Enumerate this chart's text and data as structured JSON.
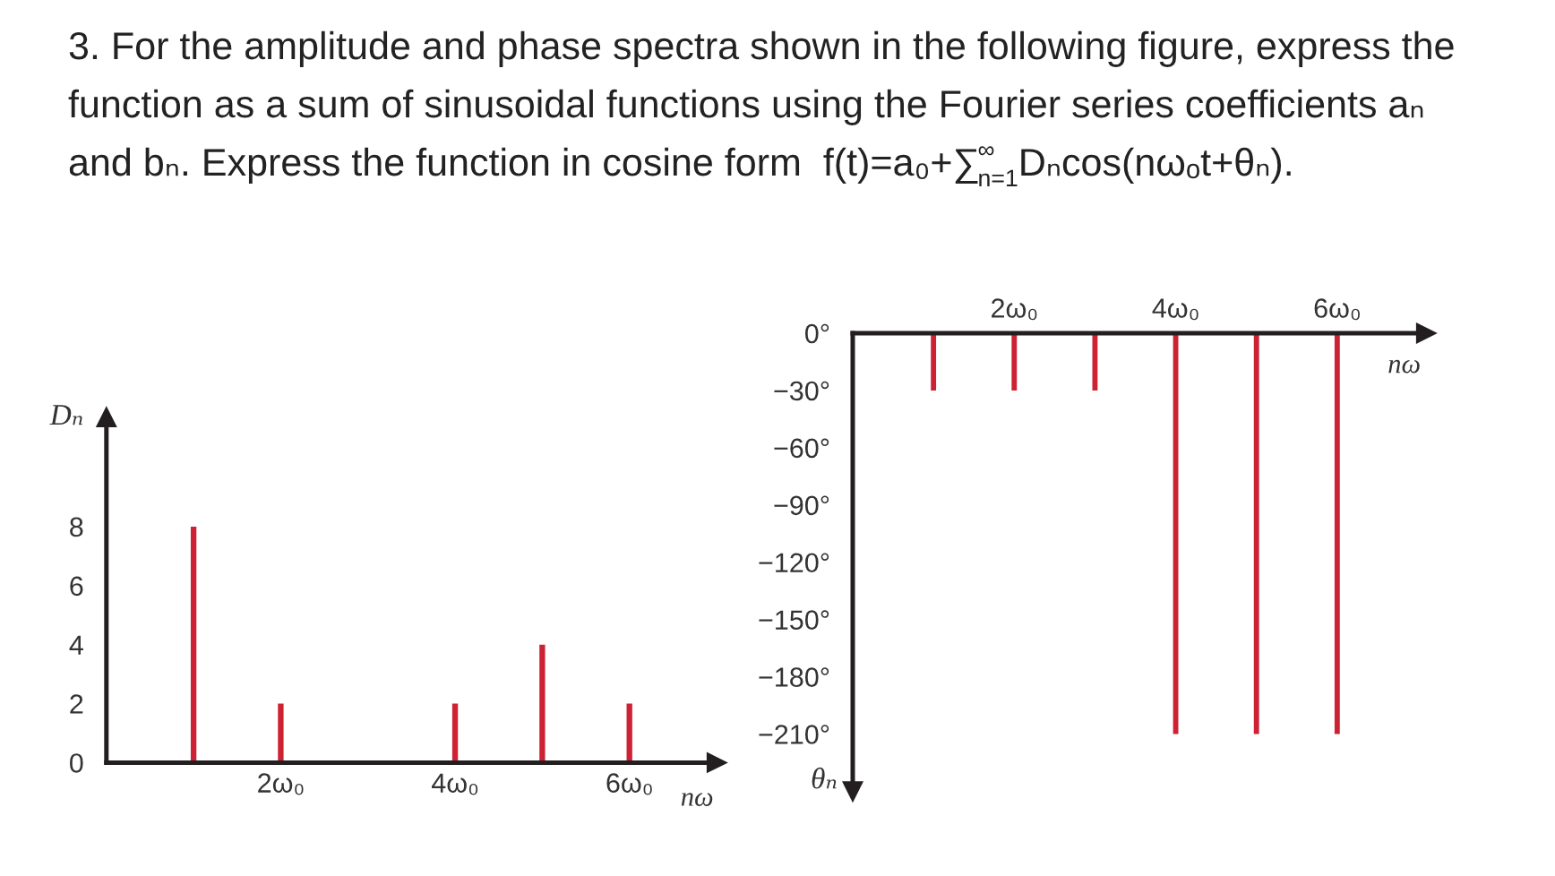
{
  "chart_data": [
    {
      "type": "bar",
      "title": "3. For the amplitude and phase spectra shown in the following figure, express the\nfunction as a sum of sinusoidal functions using the Fourier series coefficients aₙ\nand bₙ. Express the function in cosine form  f(t)=a₀+∑$_{n=1}$$^{∞}$Dₙcos(nωₒt+θₙ).",
      "x": [
        1,
        2,
        4,
        5,
        6
      ],
      "values": [
        8,
        2,
        2,
        4,
        2
      ],
      "color": "#cc2233",
      "xlim": [
        0,
        7
      ],
      "ylim": [
        0,
        11.7
      ],
      "xticks": [
        {
          "value": 2,
          "label": "2ω₀"
        },
        {
          "value": 4,
          "label": "4ω₀"
        },
        {
          "value": 6,
          "label": "6ω₀"
        }
      ],
      "yticks": [
        0,
        2,
        4,
        6,
        8
      ],
      "xlabel": "nω",
      "ylabel": "Dₙ"
    },
    {
      "type": "bar",
      "x": [
        1,
        2,
        3,
        4,
        5,
        6
      ],
      "values": [
        -30,
        -30,
        -30,
        -210,
        -210,
        -210
      ],
      "color": "#cc2233",
      "xlim": [
        0,
        7.1
      ],
      "ylim": [
        -240,
        0
      ],
      "xticks": [
        {
          "value": 2,
          "label": "2ω₀"
        },
        {
          "value": 4,
          "label": "4ω₀"
        },
        {
          "value": 6,
          "label": "6ω₀"
        }
      ],
      "yticks": [
        {
          "value": 0,
          "label": "0°"
        },
        {
          "value": -30,
          "label": "−30°"
        },
        {
          "value": -60,
          "label": "−60°"
        },
        {
          "value": -90,
          "label": "−90°"
        },
        {
          "value": -120,
          "label": "−120°"
        },
        {
          "value": -150,
          "label": "−150°"
        },
        {
          "value": -180,
          "label": "−180°"
        },
        {
          "value": -210,
          "label": "−210°"
        }
      ],
      "xlabel": "nω",
      "ylabel": "θₙ"
    }
  ]
}
